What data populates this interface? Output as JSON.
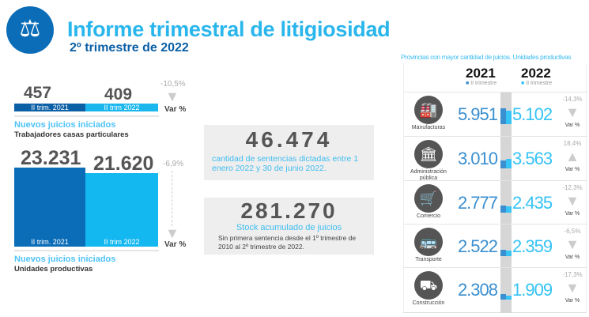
{
  "header": {
    "title": "Informe trimestral de litigiosidad",
    "subtitle": "2º trimestre de 2022",
    "logo_icon": "scales-icon"
  },
  "trabajadores": {
    "v2021": "457",
    "v2022": "409",
    "l2021": "II trim. 2021",
    "l2022": "II trim 2022",
    "var": "-10,5%",
    "var_label": "Var %",
    "title": "Nuevos juicios iniciados",
    "subtitle": "Trabajadores casas particulares"
  },
  "unidades": {
    "v2021": "23.231",
    "v2022": "21.620",
    "l2021": "II trim. 2021",
    "l2022": "II trim 2022",
    "var": "-6,9%",
    "var_label": "Var %",
    "title": "Nuevos juicios iniciados",
    "subtitle": "Unidades productivas"
  },
  "sentencias": {
    "value": "46.474",
    "text": "cantidad de sentencias dictadas entre 1 enero 2022 y 30 de junio 2022."
  },
  "stock": {
    "value": "281.270",
    "title": "Stock acumulado de juicios",
    "text": "Sin primera sentencia desde el 1º trimestre de 2010 al  2º trimestre de 2022."
  },
  "provincias": {
    "title": "Provincias con mayor cantidad de juicios. Unidades productivas",
    "y1": "2021",
    "y1sub": "II trimestre",
    "y2": "2022",
    "y2sub": "II trimestre",
    "colors": {
      "c2021": "#3a8fd0",
      "c2022": "#36c3f5"
    },
    "rows": [
      {
        "label": "Manufacturas",
        "icon": "factory-icon",
        "v2021": "5.951",
        "v2022": "5.102",
        "var": "-14,3%",
        "dir": "down",
        "var_label": "Var %"
      },
      {
        "label": "Administración pública",
        "icon": "government-building-icon",
        "v2021": "3.010",
        "v2022": "3.563",
        "var": "18,4%",
        "dir": "up",
        "var_label": "Var %"
      },
      {
        "label": "Comercio",
        "icon": "shopping-cart-icon",
        "v2021": "2.777",
        "v2022": "2.435",
        "var": "-12,3%",
        "dir": "down",
        "var_label": "Var %"
      },
      {
        "label": "Transporte",
        "icon": "bus-icon",
        "v2021": "2.522",
        "v2022": "2.359",
        "var": "-6,5%",
        "dir": "down",
        "var_label": "Var %"
      },
      {
        "label": "Construcción",
        "icon": "wheelbarrow-icon",
        "v2021": "2.308",
        "v2022": "1.909",
        "var": "-17,3%",
        "dir": "down",
        "var_label": "Var %"
      }
    ]
  }
}
